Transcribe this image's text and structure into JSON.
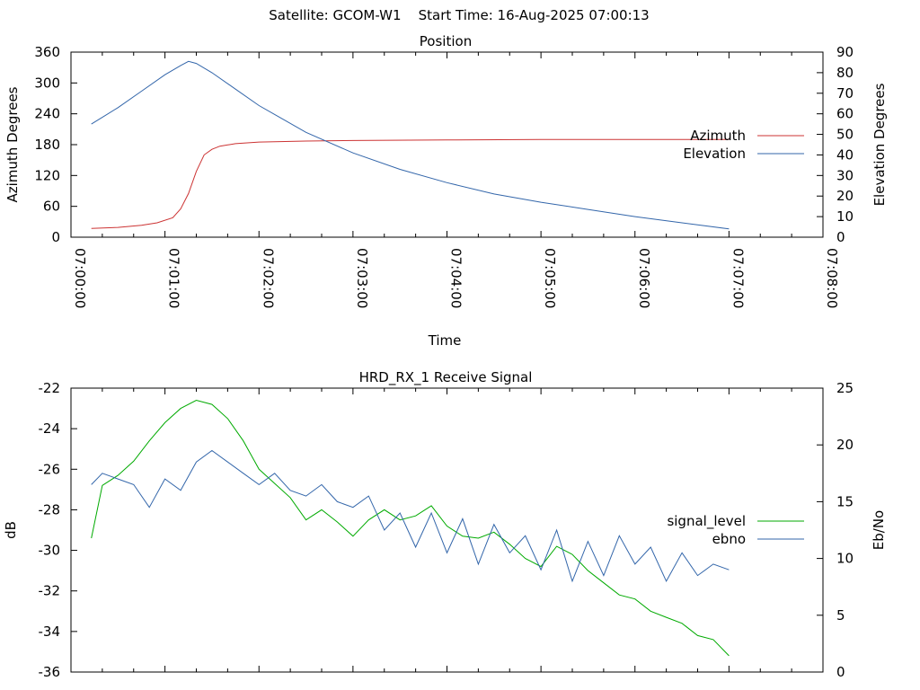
{
  "page": {
    "header": "Satellite: GCOM-W1    Start Time: 16-Aug-2025 07:00:13"
  },
  "chart_data": [
    {
      "type": "line",
      "title": "Position",
      "xlabel": "Time",
      "ylabel": "Azimuth Degrees",
      "y2label": "Elevation Degrees",
      "xlim": [
        "07:00:00",
        "07:08:00"
      ],
      "ylim": [
        0,
        360
      ],
      "y2lim": [
        0,
        90
      ],
      "xticks": [
        "07:00:00",
        "07:01:00",
        "07:02:00",
        "07:03:00",
        "07:04:00",
        "07:05:00",
        "07:06:00",
        "07:07:00",
        "07:08:00"
      ],
      "yticks": [
        0,
        60,
        120,
        180,
        240,
        300,
        360
      ],
      "y2ticks": [
        0,
        10,
        20,
        30,
        40,
        50,
        60,
        70,
        80,
        90
      ],
      "legend_position": "right",
      "grid": false,
      "series": [
        {
          "name": "Azimuth",
          "axis": "left",
          "color": "#cc3333",
          "x": [
            "07:00:13",
            "07:00:30",
            "07:00:45",
            "07:00:55",
            "07:01:05",
            "07:01:10",
            "07:01:15",
            "07:01:20",
            "07:01:25",
            "07:01:30",
            "07:01:35",
            "07:01:45",
            "07:02:00",
            "07:02:30",
            "07:03:00",
            "07:04:00",
            "07:05:00",
            "07:06:00",
            "07:07:00"
          ],
          "values": [
            17,
            19,
            23,
            28,
            38,
            55,
            85,
            128,
            160,
            171,
            177,
            182,
            185,
            187,
            188,
            189,
            190,
            190,
            190
          ]
        },
        {
          "name": "Elevation",
          "axis": "right",
          "color": "#3366aa",
          "x": [
            "07:00:13",
            "07:00:30",
            "07:00:45",
            "07:01:00",
            "07:01:10",
            "07:01:15",
            "07:01:20",
            "07:01:30",
            "07:01:45",
            "07:02:00",
            "07:02:30",
            "07:03:00",
            "07:03:30",
            "07:04:00",
            "07:04:30",
            "07:05:00",
            "07:05:30",
            "07:06:00",
            "07:06:30",
            "07:07:00"
          ],
          "values": [
            55,
            63,
            71,
            79,
            83.5,
            85.5,
            84.5,
            80,
            72,
            64,
            51,
            41,
            33,
            26.5,
            21,
            17,
            13.5,
            10,
            7,
            4
          ]
        }
      ]
    },
    {
      "type": "line",
      "title": "HRD_RX_1 Receive Signal",
      "xlabel": "",
      "ylabel": "dB",
      "y2label": "Eb/No",
      "xlim": [
        "07:00:00",
        "07:08:00"
      ],
      "ylim": [
        -36,
        -22
      ],
      "y2lim": [
        0,
        25
      ],
      "yticks": [
        -36,
        -34,
        -32,
        -30,
        -28,
        -26,
        -24,
        -22
      ],
      "y2ticks": [
        0,
        5,
        10,
        15,
        20,
        25
      ],
      "legend_position": "right",
      "grid": false,
      "series": [
        {
          "name": "signal_level",
          "axis": "left",
          "color": "#00aa00",
          "x": [
            "07:00:13",
            "07:00:20",
            "07:00:30",
            "07:00:40",
            "07:00:50",
            "07:01:00",
            "07:01:10",
            "07:01:20",
            "07:01:30",
            "07:01:40",
            "07:01:50",
            "07:02:00",
            "07:02:10",
            "07:02:20",
            "07:02:30",
            "07:02:40",
            "07:02:50",
            "07:03:00",
            "07:03:10",
            "07:03:20",
            "07:03:30",
            "07:03:40",
            "07:03:50",
            "07:04:00",
            "07:04:10",
            "07:04:20",
            "07:04:30",
            "07:04:40",
            "07:04:50",
            "07:05:00",
            "07:05:10",
            "07:05:20",
            "07:05:30",
            "07:05:40",
            "07:05:50",
            "07:06:00",
            "07:06:10",
            "07:06:20",
            "07:06:30",
            "07:06:40",
            "07:06:50",
            "07:07:00"
          ],
          "values": [
            -29.4,
            -26.8,
            -26.3,
            -25.6,
            -24.6,
            -23.7,
            -23.0,
            -22.6,
            -22.8,
            -23.5,
            -24.6,
            -26.0,
            -26.7,
            -27.4,
            -28.5,
            -28.0,
            -28.6,
            -29.3,
            -28.5,
            -28.0,
            -28.5,
            -28.3,
            -27.8,
            -28.8,
            -29.3,
            -29.4,
            -29.1,
            -29.7,
            -30.4,
            -30.8,
            -29.8,
            -30.2,
            -31.0,
            -31.6,
            -32.2,
            -32.4,
            -33.0,
            -33.3,
            -33.6,
            -34.2,
            -34.4,
            -35.2
          ]
        },
        {
          "name": "ebno",
          "axis": "right",
          "color": "#3366aa",
          "x": [
            "07:00:13",
            "07:00:20",
            "07:00:30",
            "07:00:40",
            "07:00:50",
            "07:01:00",
            "07:01:10",
            "07:01:20",
            "07:01:30",
            "07:01:40",
            "07:01:50",
            "07:02:00",
            "07:02:10",
            "07:02:20",
            "07:02:30",
            "07:02:40",
            "07:02:50",
            "07:03:00",
            "07:03:10",
            "07:03:20",
            "07:03:30",
            "07:03:40",
            "07:03:50",
            "07:04:00",
            "07:04:10",
            "07:04:20",
            "07:04:30",
            "07:04:40",
            "07:04:50",
            "07:05:00",
            "07:05:10",
            "07:05:20",
            "07:05:30",
            "07:05:40",
            "07:05:50",
            "07:06:00",
            "07:06:10",
            "07:06:20",
            "07:06:30",
            "07:06:40",
            "07:06:50",
            "07:07:00"
          ],
          "values": [
            16.5,
            17.5,
            17.0,
            16.5,
            14.5,
            17.0,
            16.0,
            18.5,
            19.5,
            18.5,
            17.5,
            16.5,
            17.5,
            16.0,
            15.5,
            16.5,
            15.0,
            14.5,
            15.5,
            12.5,
            14.0,
            11.0,
            14.0,
            10.5,
            13.5,
            9.5,
            13.0,
            10.5,
            12.0,
            9.0,
            12.5,
            8.0,
            11.5,
            8.5,
            12.0,
            9.5,
            11.0,
            8.0,
            10.5,
            8.5,
            9.5,
            9.0
          ]
        }
      ]
    }
  ]
}
